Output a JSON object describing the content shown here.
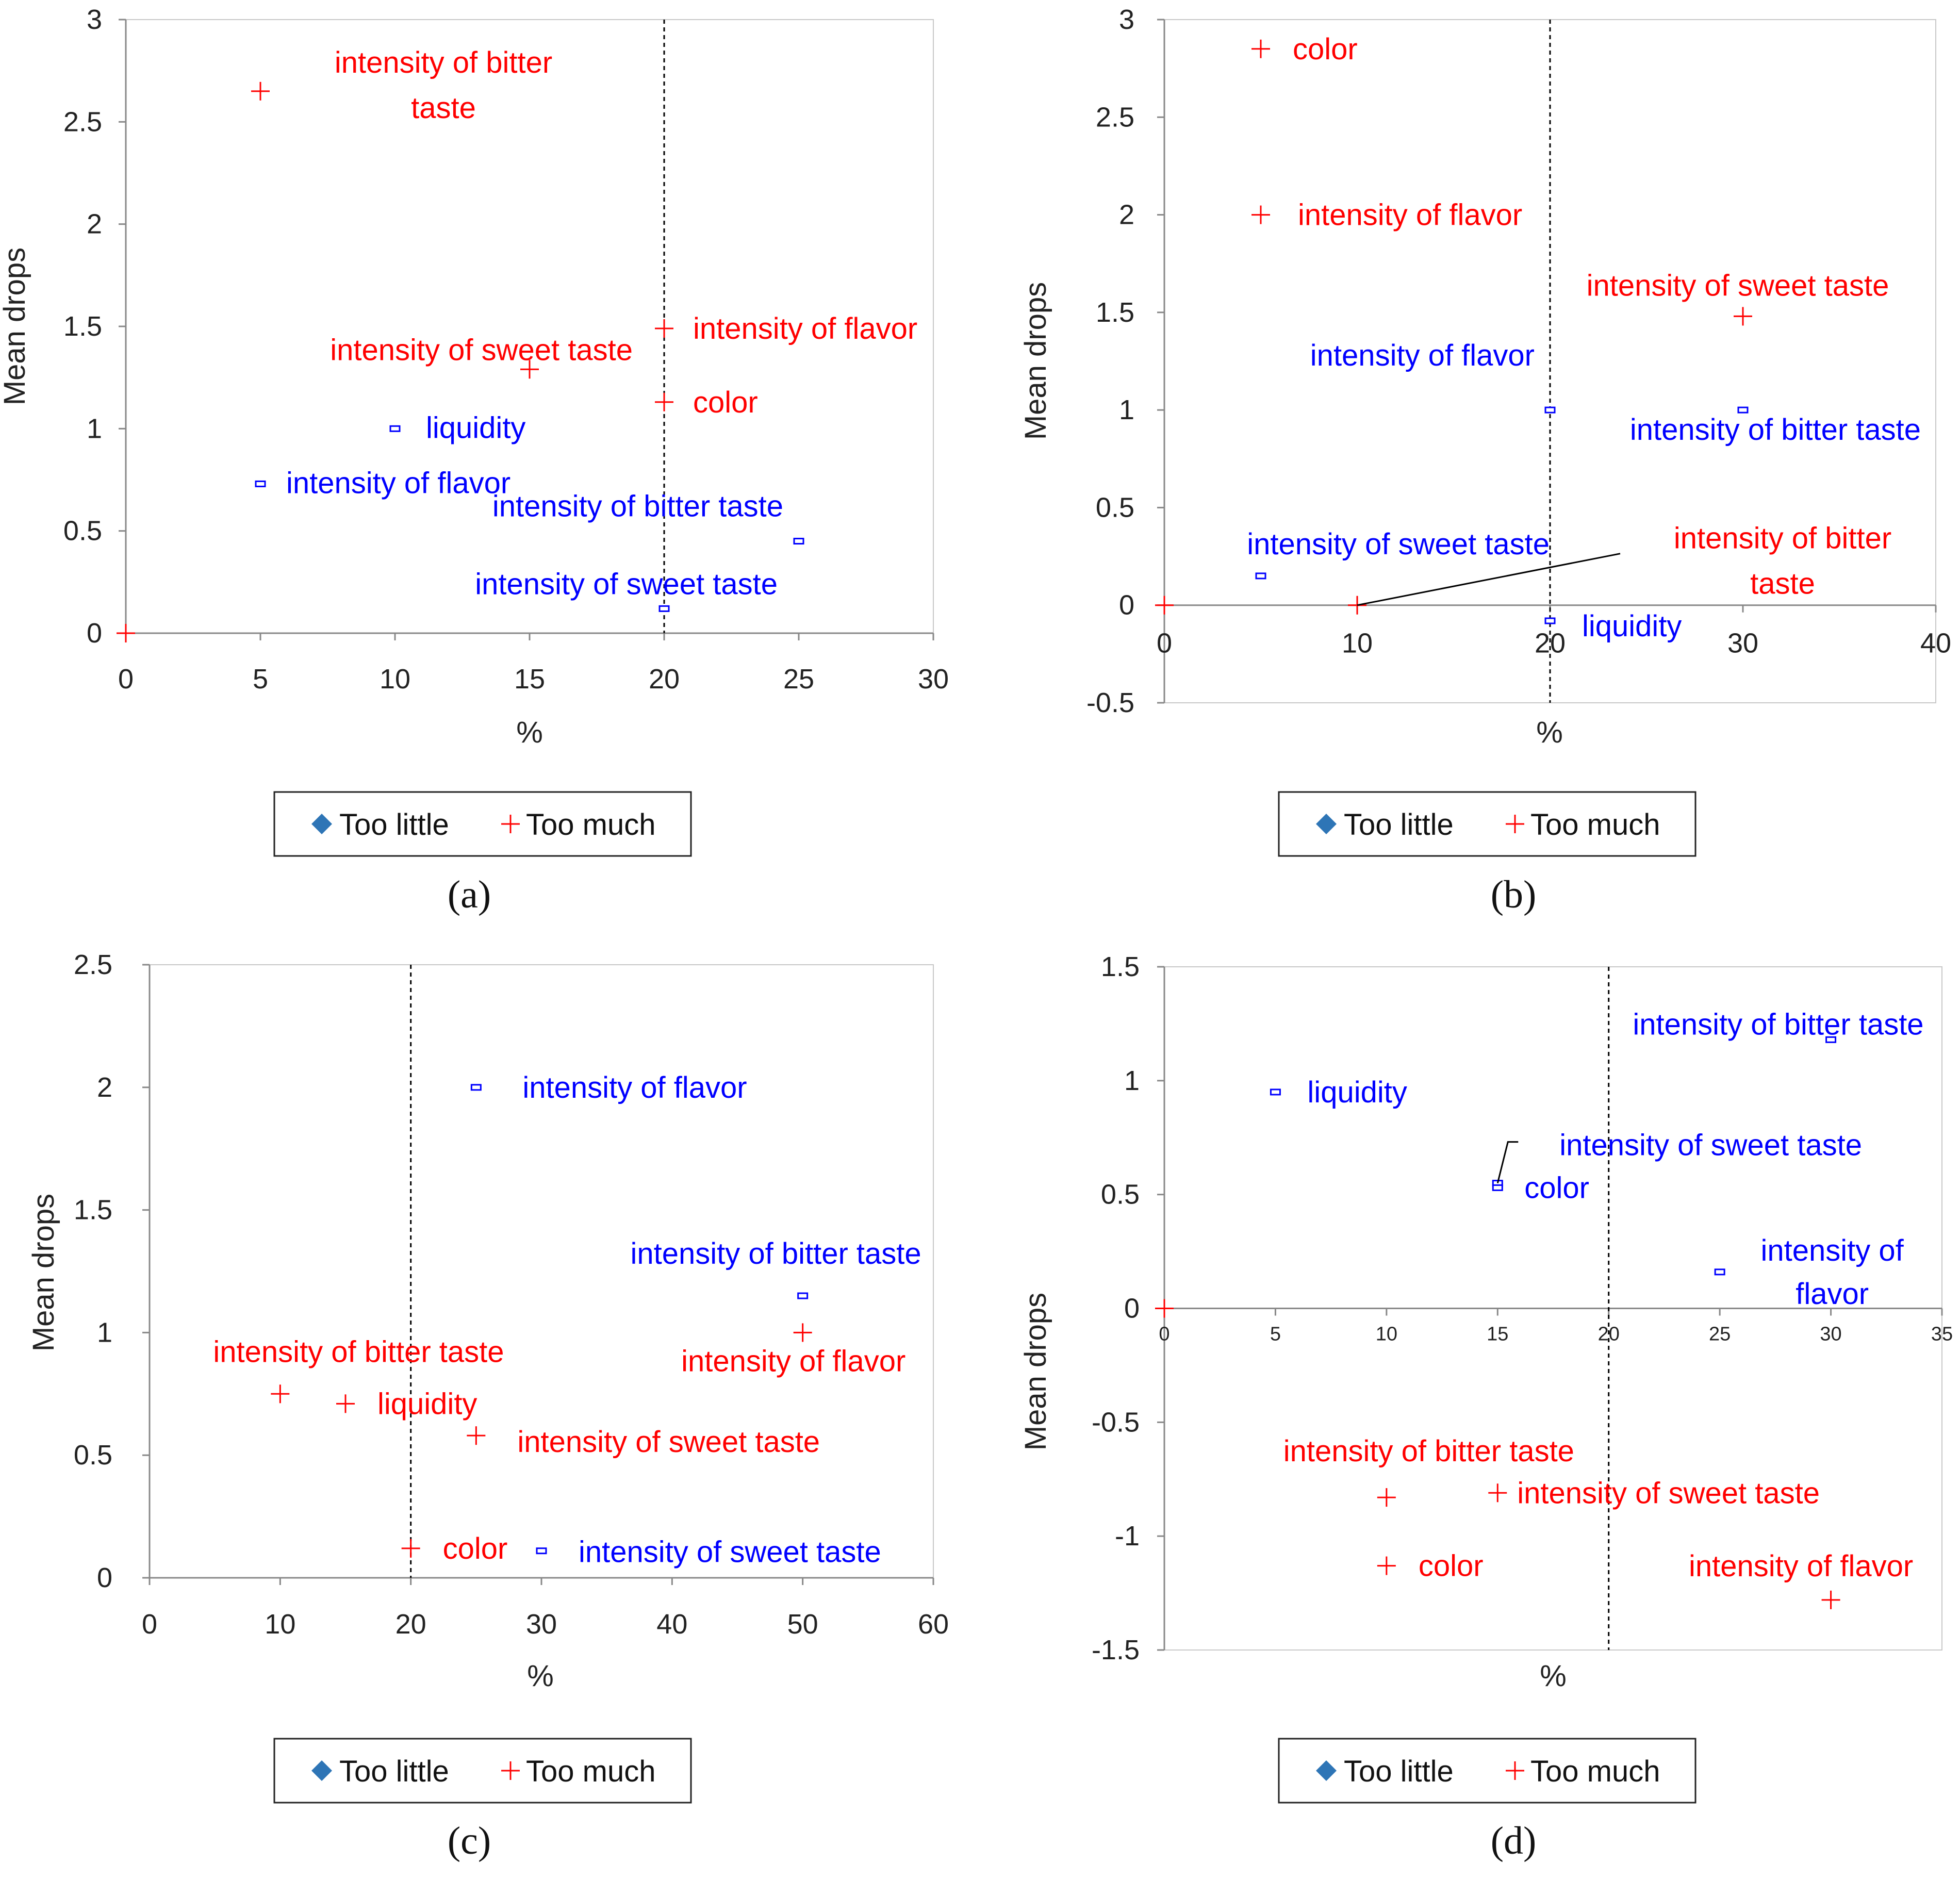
{
  "colors": {
    "too_little": "#0000ff",
    "too_much": "#ff0000",
    "legend_too_little": "#2e75b6",
    "axis": "#888888",
    "threshold": "#000000"
  },
  "legend": {
    "too_little": "Too little",
    "too_much": "Too much"
  },
  "chart_data": [
    {
      "type": "scatter",
      "panel_label": "(a)",
      "xlabel": "%",
      "ylabel": "Mean drops",
      "xlim": [
        0,
        30
      ],
      "ylim": [
        0,
        3
      ],
      "xticks": [
        "0",
        "5",
        "10",
        "15",
        "20",
        "25",
        "30"
      ],
      "yticks": [
        "0",
        "0.5",
        "1",
        "1.5",
        "2",
        "2.5",
        "3"
      ],
      "threshold_x": 20,
      "series": [
        {
          "name": "Too little",
          "points": [
            {
              "x": 10,
              "y": 1.0,
              "label": "liquidity"
            },
            {
              "x": 5,
              "y": 0.73,
              "label": "intensity of flavor"
            },
            {
              "x": 25,
              "y": 0.45,
              "label": "intensity of bitter taste"
            },
            {
              "x": 20,
              "y": 0.12,
              "label": "intensity of sweet taste"
            }
          ]
        },
        {
          "name": "Too much",
          "points": [
            {
              "x": 5,
              "y": 2.65,
              "label": [
                "intensity of bitter",
                "taste"
              ]
            },
            {
              "x": 20,
              "y": 1.49,
              "label": "intensity of flavor"
            },
            {
              "x": 15,
              "y": 1.29,
              "label": "intensity of sweet taste"
            },
            {
              "x": 20,
              "y": 1.13,
              "label": "color"
            },
            {
              "x": 0,
              "y": 0,
              "label": ""
            }
          ]
        }
      ]
    },
    {
      "type": "scatter",
      "panel_label": "(b)",
      "xlabel": "%",
      "ylabel": "Mean drops",
      "xlim": [
        0,
        40
      ],
      "ylim": [
        -0.5,
        3
      ],
      "xticks": [
        "0",
        "10",
        "20",
        "30",
        "40"
      ],
      "yticks": [
        "-0.5",
        "0",
        "0.5",
        "1",
        "1.5",
        "2",
        "2.5",
        "3"
      ],
      "threshold_x": 20,
      "series": [
        {
          "name": "Too little",
          "points": [
            {
              "x": 20,
              "y": 1.0,
              "label": "intensity of flavor"
            },
            {
              "x": 30,
              "y": 1.0,
              "label": "intensity of bitter taste"
            },
            {
              "x": 5,
              "y": 0.15,
              "label": "intensity of sweet taste"
            },
            {
              "x": 20,
              "y": -0.08,
              "label": "liquidity"
            }
          ]
        },
        {
          "name": "Too much",
          "points": [
            {
              "x": 5,
              "y": 2.85,
              "label": "color"
            },
            {
              "x": 5,
              "y": 2.0,
              "label": "intensity of flavor"
            },
            {
              "x": 30,
              "y": 1.48,
              "label": "intensity of sweet taste"
            },
            {
              "x": 10,
              "y": 0,
              "label": [
                "intensity of bitter",
                "taste"
              ]
            },
            {
              "x": 0,
              "y": 0,
              "label": ""
            }
          ]
        }
      ]
    },
    {
      "type": "scatter",
      "panel_label": "(c)",
      "xlabel": "%",
      "ylabel": "Mean drops",
      "xlim": [
        0,
        60
      ],
      "ylim": [
        0,
        2.5
      ],
      "xticks": [
        "0",
        "10",
        "20",
        "30",
        "40",
        "50",
        "60"
      ],
      "yticks": [
        "0",
        "0.5",
        "1",
        "1.5",
        "2",
        "2.5"
      ],
      "threshold_x": 20,
      "series": [
        {
          "name": "Too little",
          "points": [
            {
              "x": 25,
              "y": 2.0,
              "label": "intensity of flavor"
            },
            {
              "x": 50,
              "y": 1.15,
              "label": "intensity of bitter taste"
            },
            {
              "x": 30,
              "y": 0.11,
              "label": "intensity of sweet taste"
            }
          ]
        },
        {
          "name": "Too much",
          "points": [
            {
              "x": 10,
              "y": 0.75,
              "label": "intensity of bitter taste"
            },
            {
              "x": 15,
              "y": 0.71,
              "label": "liquidity"
            },
            {
              "x": 25,
              "y": 0.58,
              "label": "intensity of sweet taste"
            },
            {
              "x": 50,
              "y": 1.0,
              "label": "intensity of flavor"
            },
            {
              "x": 20,
              "y": 0.12,
              "label": "color"
            }
          ]
        }
      ]
    },
    {
      "type": "scatter",
      "panel_label": "(d)",
      "xlabel": "%",
      "ylabel": "Mean drops",
      "xlim": [
        0,
        35
      ],
      "ylim": [
        -1.5,
        1.5
      ],
      "xticks": [
        "0",
        "5",
        "10",
        "15",
        "20",
        "25",
        "30",
        "35"
      ],
      "yticks": [
        "-1.5",
        "-1",
        "-0.5",
        "0",
        "0.5",
        "1",
        "1.5"
      ],
      "threshold_x": 20,
      "series": [
        {
          "name": "Too little",
          "points": [
            {
              "x": 5,
              "y": 0.95,
              "label": "liquidity"
            },
            {
              "x": 30,
              "y": 1.18,
              "label": "intensity of bitter taste"
            },
            {
              "x": 15,
              "y": 0.55,
              "label": "intensity of sweet taste"
            },
            {
              "x": 15,
              "y": 0.53,
              "label": "color"
            },
            {
              "x": 25,
              "y": 0.16,
              "label": [
                "intensity of",
                "flavor"
              ]
            }
          ]
        },
        {
          "name": "Too much",
          "points": [
            {
              "x": 10,
              "y": -0.83,
              "label": "intensity of bitter taste"
            },
            {
              "x": 15,
              "y": -0.81,
              "label": "intensity of sweet taste"
            },
            {
              "x": 10,
              "y": -1.13,
              "label": "color"
            },
            {
              "x": 30,
              "y": -1.28,
              "label": "intensity of flavor"
            },
            {
              "x": 0,
              "y": 0,
              "label": ""
            }
          ]
        }
      ]
    }
  ]
}
